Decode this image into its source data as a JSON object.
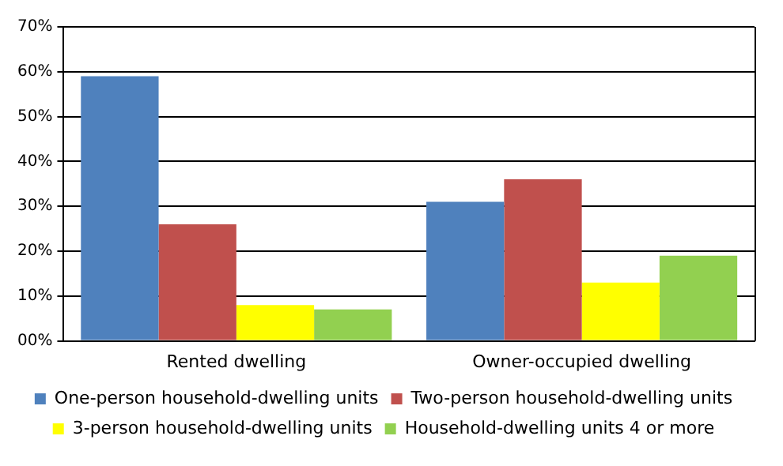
{
  "chart_data": {
    "type": "bar",
    "categories": [
      "Rented dwelling",
      "Owner-occupied dwelling"
    ],
    "series": [
      {
        "name": "One-person household-dwelling units",
        "color": "#4f81bd",
        "values": [
          59,
          31
        ]
      },
      {
        "name": "Two-person household-dwelling units",
        "color": "#c0504d",
        "values": [
          26,
          36
        ]
      },
      {
        "name": "3-person household-dwelling units",
        "color": "#ffff00",
        "values": [
          8,
          13
        ]
      },
      {
        "name": "Household-dwelling units 4 or more",
        "color": "#92d050",
        "values": [
          7,
          19
        ]
      }
    ],
    "ylim": [
      0,
      70
    ],
    "yticks": [
      {
        "value": 0,
        "label": "00%"
      },
      {
        "value": 10,
        "label": "10%"
      },
      {
        "value": 20,
        "label": "20%"
      },
      {
        "value": 30,
        "label": "30%"
      },
      {
        "value": 40,
        "label": "40%"
      },
      {
        "value": 50,
        "label": "50%"
      },
      {
        "value": 60,
        "label": "60%"
      },
      {
        "value": 70,
        "label": "70%"
      }
    ],
    "grid": "y",
    "legend": "bottom"
  }
}
